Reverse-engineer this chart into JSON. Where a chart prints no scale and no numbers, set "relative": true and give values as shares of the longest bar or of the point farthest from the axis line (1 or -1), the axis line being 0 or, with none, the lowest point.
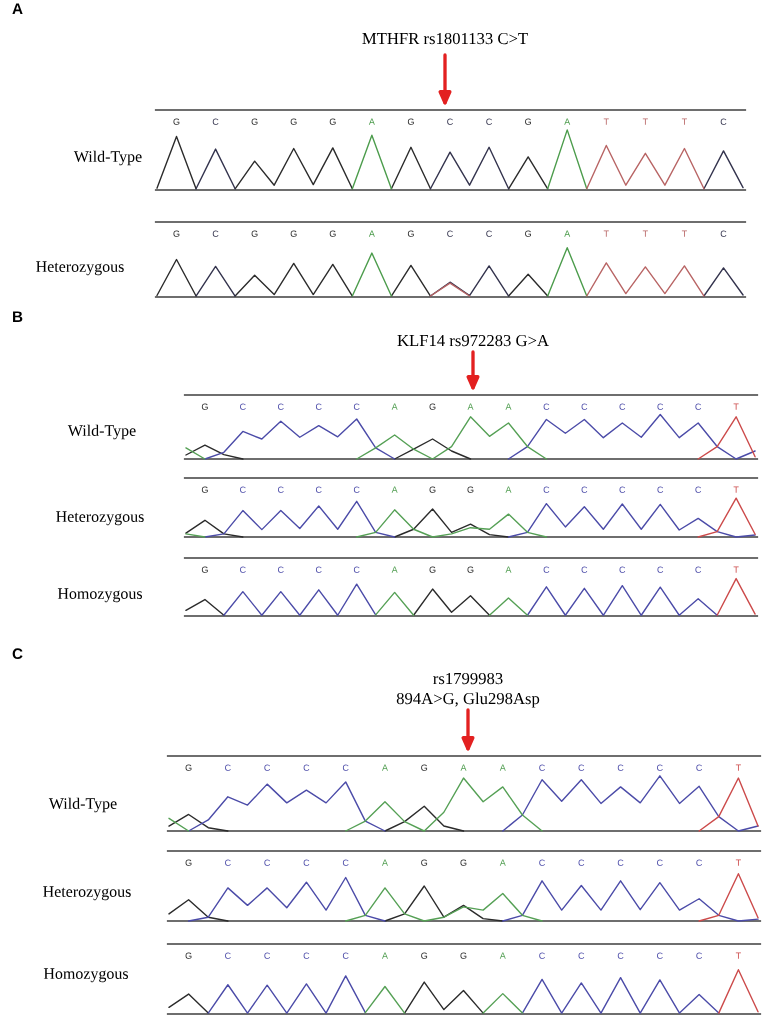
{
  "chart_data": [
    {
      "type": "line",
      "relative": true,
      "title": "MTHFR rs1801133 C>T",
      "annotations": [
        "A"
      ],
      "ylabel": "Wild-Type",
      "tick_labels": "x",
      "categories": [
        null,
        "G",
        null,
        "C",
        null,
        "G",
        null,
        "G",
        null,
        "G",
        null,
        "A",
        null,
        "G",
        null,
        "C",
        null,
        "C",
        null,
        "G",
        null,
        "A",
        null,
        "T",
        null,
        "T",
        null,
        "T",
        null,
        "C",
        null
      ],
      "series": [
        {
          "color": "#2b2b2b",
          "values": [
            0.03,
            0.89,
            0.02,
            null,
            0.02,
            0.48,
            0.08,
            0.69,
            0.09,
            0.7,
            0.02,
            null,
            0.02,
            0.71,
            0.02,
            null,
            null,
            null,
            0.02,
            0.55,
            0.02,
            null,
            null,
            null,
            null,
            null,
            null,
            null,
            null,
            null,
            null
          ]
        },
        {
          "color": "#33334d",
          "values": [
            null,
            null,
            0.02,
            0.68,
            0.02,
            null,
            null,
            null,
            null,
            null,
            null,
            null,
            null,
            null,
            0.02,
            0.63,
            0.08,
            0.71,
            0.02,
            null,
            null,
            null,
            null,
            null,
            null,
            null,
            null,
            null,
            0.02,
            0.65,
            0.04
          ]
        },
        {
          "color": "#4c9c4c",
          "values": [
            null,
            null,
            null,
            null,
            null,
            null,
            null,
            null,
            null,
            null,
            0.02,
            0.91,
            0.02,
            null,
            null,
            null,
            null,
            null,
            null,
            null,
            0.02,
            1,
            0.02,
            null,
            null,
            null,
            null,
            null,
            null,
            null,
            null
          ]
        },
        {
          "color": "#b86464",
          "values": [
            null,
            null,
            null,
            null,
            null,
            null,
            null,
            null,
            null,
            null,
            null,
            null,
            null,
            null,
            null,
            null,
            null,
            null,
            null,
            null,
            null,
            null,
            0.02,
            0.74,
            0.08,
            0.61,
            0.08,
            0.69,
            0.02,
            null,
            null
          ]
        }
      ]
    },
    {
      "type": "line",
      "relative": true,
      "ylabel": "Heterozygous",
      "tick_labels": "x",
      "categories": [
        null,
        "G",
        null,
        "C",
        null,
        "G",
        null,
        "G",
        null,
        "G",
        null,
        "A",
        null,
        "G",
        null,
        "C",
        null,
        "C",
        null,
        "G",
        null,
        "A",
        null,
        "T",
        null,
        "T",
        null,
        "T",
        null,
        "C",
        null
      ],
      "series": [
        {
          "color": "#2b2b2b",
          "values": [
            0.03,
            0.76,
            0.02,
            null,
            0.02,
            0.44,
            0.05,
            0.68,
            0.05,
            0.66,
            0.02,
            null,
            0.02,
            0.64,
            0.02,
            null,
            null,
            null,
            0.02,
            0.46,
            0.02,
            null,
            null,
            null,
            null,
            null,
            null,
            null,
            null,
            null,
            null
          ]
        },
        {
          "color": "#33334d",
          "values": [
            null,
            null,
            0.02,
            0.62,
            0.02,
            null,
            null,
            null,
            null,
            null,
            null,
            null,
            null,
            null,
            0.02,
            0.3,
            0.03,
            0.63,
            0.02,
            null,
            null,
            null,
            null,
            null,
            null,
            null,
            null,
            null,
            0.02,
            0.59,
            0.04
          ]
        },
        {
          "color": "#4c9c4c",
          "values": [
            null,
            null,
            null,
            null,
            null,
            null,
            null,
            null,
            null,
            null,
            0.02,
            0.89,
            0.02,
            null,
            null,
            null,
            null,
            null,
            null,
            null,
            0.02,
            1,
            0.02,
            null,
            null,
            null,
            null,
            null,
            null,
            null,
            null
          ]
        },
        {
          "color": "#b86464",
          "values": [
            null,
            null,
            null,
            null,
            null,
            null,
            null,
            null,
            null,
            null,
            null,
            null,
            null,
            null,
            0.02,
            0.28,
            0.02,
            null,
            null,
            null,
            null,
            null,
            0.02,
            0.69,
            0.07,
            0.61,
            0.07,
            0.63,
            0.02,
            null,
            null
          ]
        }
      ]
    },
    {
      "type": "line",
      "relative": true,
      "title": "KLF14 rs972283 G>A",
      "annotations": [
        "B"
      ],
      "ylabel": "Wild-Type",
      "tick_labels": "x",
      "categories": [
        null,
        "G",
        null,
        "C",
        null,
        "C",
        null,
        "C",
        null,
        "C",
        null,
        "A",
        null,
        "G",
        null,
        "A",
        null,
        "A",
        null,
        "C",
        null,
        "C",
        null,
        "C",
        null,
        "C",
        null,
        "C",
        null,
        "T",
        null
      ],
      "series": [
        {
          "color": "#2b2b2b",
          "values": [
            0.09,
            0.31,
            0.1,
            0,
            null,
            null,
            null,
            null,
            null,
            null,
            null,
            0,
            0.22,
            0.45,
            0.18,
            0,
            null,
            null,
            null,
            null,
            null,
            null,
            null,
            null,
            null,
            null,
            null,
            null,
            null,
            null,
            null
          ]
        },
        {
          "color": "#4b4ba8",
          "values": [
            null,
            0,
            0.15,
            0.62,
            0.45,
            0.85,
            0.49,
            0.75,
            0.5,
            0.9,
            0.25,
            0,
            null,
            null,
            null,
            null,
            null,
            0,
            0.28,
            0.89,
            0.58,
            0.89,
            0.48,
            0.81,
            0.49,
            1,
            0.48,
            0.81,
            0.28,
            0,
            0.18
          ]
        },
        {
          "color": "#55a055",
          "values": [
            0.25,
            0,
            null,
            null,
            null,
            null,
            null,
            null,
            null,
            0,
            0.25,
            0.54,
            0.22,
            0,
            0.28,
            0.95,
            0.51,
            0.81,
            0.28,
            0,
            null,
            null,
            null,
            null,
            null,
            null,
            null,
            null,
            null,
            null,
            null
          ]
        },
        {
          "color": "#cc4a4a",
          "values": [
            null,
            null,
            null,
            null,
            null,
            null,
            null,
            null,
            null,
            null,
            null,
            null,
            null,
            null,
            null,
            null,
            null,
            null,
            null,
            null,
            null,
            null,
            null,
            null,
            null,
            null,
            null,
            0,
            0.28,
            0.95,
            0.05
          ]
        }
      ]
    },
    {
      "type": "line",
      "relative": true,
      "ylabel": "Heterozygous",
      "tick_labels": "x",
      "categories": [
        null,
        "G",
        null,
        "C",
        null,
        "C",
        null,
        "C",
        null,
        "C",
        null,
        "A",
        null,
        "G",
        null,
        "G",
        null,
        "A",
        null,
        "C",
        null,
        "C",
        null,
        "C",
        null,
        "C",
        null,
        "C",
        null,
        "T",
        null
      ],
      "series": [
        {
          "color": "#2b2b2b",
          "values": [
            0.1,
            0.43,
            0.08,
            0,
            null,
            null,
            null,
            null,
            null,
            null,
            null,
            0,
            0.2,
            0.72,
            0.12,
            0.33,
            0.06,
            0,
            null,
            null,
            null,
            null,
            null,
            null,
            null,
            null,
            null,
            null,
            null,
            null,
            null
          ]
        },
        {
          "color": "#4b4ba8",
          "values": [
            null,
            0,
            0.08,
            0.68,
            0.19,
            0.68,
            0.22,
            0.8,
            0.2,
            0.92,
            0.12,
            0,
            null,
            null,
            null,
            null,
            null,
            0,
            0.12,
            0.86,
            0.26,
            0.78,
            0.2,
            0.85,
            0.2,
            0.84,
            0.18,
            0.48,
            0.14,
            0,
            0.05
          ]
        },
        {
          "color": "#55a055",
          "values": [
            0.08,
            0,
            null,
            null,
            null,
            null,
            null,
            null,
            null,
            0,
            0.12,
            0.7,
            0.2,
            0,
            0.08,
            0.24,
            0.2,
            0.59,
            0.12,
            0,
            null,
            null,
            null,
            null,
            null,
            null,
            null,
            null,
            null,
            null,
            null
          ]
        },
        {
          "color": "#cc4a4a",
          "values": [
            null,
            null,
            null,
            null,
            null,
            null,
            null,
            null,
            null,
            null,
            null,
            null,
            null,
            null,
            null,
            null,
            null,
            null,
            null,
            null,
            null,
            null,
            null,
            null,
            null,
            null,
            null,
            0,
            0.14,
            1,
            0.07
          ]
        }
      ]
    },
    {
      "type": "line",
      "relative": true,
      "ylabel": "Homozygous",
      "tick_labels": "x",
      "categories": [
        null,
        "G",
        null,
        "C",
        null,
        "C",
        null,
        "C",
        null,
        "C",
        null,
        "A",
        null,
        "G",
        null,
        "G",
        null,
        "A",
        null,
        "C",
        null,
        "C",
        null,
        "C",
        null,
        "C",
        null,
        "C",
        null,
        "T",
        null
      ],
      "series": [
        {
          "color": "#2b2b2b",
          "values": [
            0.15,
            0.44,
            0.02,
            null,
            null,
            null,
            null,
            null,
            null,
            null,
            null,
            null,
            0.02,
            0.72,
            0.1,
            0.54,
            0.02,
            null,
            null,
            null,
            null,
            null,
            null,
            null,
            null,
            null,
            null,
            null,
            null,
            null,
            null
          ]
        },
        {
          "color": "#4b4ba8",
          "values": [
            null,
            null,
            0.02,
            0.65,
            0.02,
            0.65,
            0.02,
            0.7,
            0.02,
            0.85,
            0.03,
            null,
            null,
            null,
            null,
            null,
            null,
            null,
            0.02,
            0.78,
            0.02,
            0.74,
            0.02,
            0.81,
            0.02,
            0.77,
            0.02,
            0.46,
            0.02,
            null,
            null
          ]
        },
        {
          "color": "#55a055",
          "values": [
            null,
            null,
            null,
            null,
            null,
            null,
            null,
            null,
            null,
            null,
            0.03,
            0.63,
            0.02,
            null,
            null,
            null,
            0.02,
            0.48,
            0.02,
            null,
            null,
            null,
            null,
            null,
            null,
            null,
            null,
            null,
            null,
            null,
            null
          ]
        },
        {
          "color": "#cc4a4a",
          "values": [
            null,
            null,
            null,
            null,
            null,
            null,
            null,
            null,
            null,
            null,
            null,
            null,
            null,
            null,
            null,
            null,
            null,
            null,
            null,
            null,
            null,
            null,
            null,
            null,
            null,
            null,
            null,
            null,
            0.02,
            1,
            0.05
          ]
        }
      ]
    },
    {
      "type": "line",
      "relative": true,
      "title": "rs1799983",
      "subtitle": "894A>G, Glu298Asp",
      "annotations": [
        "C"
      ],
      "ylabel": "Wild-Type",
      "tick_labels": "x",
      "categories": [
        null,
        "G",
        null,
        "C",
        null,
        "C",
        null,
        "C",
        null,
        "C",
        null,
        "A",
        null,
        "G",
        null,
        "A",
        null,
        "A",
        null,
        "C",
        null,
        "C",
        null,
        "C",
        null,
        "C",
        null,
        "C",
        null,
        "T",
        null
      ],
      "series": [
        {
          "color": "#2b2b2b",
          "values": [
            0.09,
            0.3,
            0.06,
            0,
            null,
            null,
            null,
            null,
            null,
            null,
            null,
            0,
            0.17,
            0.45,
            0.09,
            0,
            null,
            null,
            null,
            null,
            null,
            null,
            null,
            null,
            null,
            null,
            null,
            null,
            null,
            null,
            null
          ]
        },
        {
          "color": "#4b4ba8",
          "values": [
            null,
            0,
            0.2,
            0.62,
            0.47,
            0.85,
            0.51,
            0.74,
            0.51,
            0.89,
            0.18,
            0,
            null,
            null,
            null,
            null,
            null,
            0,
            0.29,
            0.93,
            0.54,
            0.93,
            0.5,
            0.8,
            0.51,
            1,
            0.5,
            0.81,
            0.26,
            0,
            0.09
          ]
        },
        {
          "color": "#55a055",
          "values": [
            0.23,
            0,
            null,
            null,
            null,
            null,
            null,
            null,
            null,
            0,
            0.18,
            0.53,
            0.17,
            0,
            0.34,
            0.96,
            0.53,
            0.8,
            0.29,
            0,
            null,
            null,
            null,
            null,
            null,
            null,
            null,
            null,
            null,
            null,
            null
          ]
        },
        {
          "color": "#cc4a4a",
          "values": [
            null,
            null,
            null,
            null,
            null,
            null,
            null,
            null,
            null,
            null,
            null,
            null,
            null,
            null,
            null,
            null,
            null,
            null,
            null,
            null,
            null,
            null,
            null,
            null,
            null,
            null,
            null,
            0,
            0.26,
            0.96,
            0.09
          ]
        }
      ]
    },
    {
      "type": "line",
      "relative": true,
      "ylabel": "Heterozygous",
      "tick_labels": "x",
      "categories": [
        null,
        "G",
        null,
        "C",
        null,
        "C",
        null,
        "C",
        null,
        "C",
        null,
        "A",
        null,
        "G",
        null,
        "G",
        null,
        "A",
        null,
        "C",
        null,
        "C",
        null,
        "C",
        null,
        "C",
        null,
        "C",
        null,
        "T",
        null
      ],
      "series": [
        {
          "color": "#2b2b2b",
          "values": [
            0.15,
            0.45,
            0.08,
            0,
            null,
            null,
            null,
            null,
            null,
            null,
            null,
            0,
            0.15,
            0.74,
            0.08,
            0.33,
            0.05,
            0,
            null,
            null,
            null,
            null,
            null,
            null,
            null,
            null,
            null,
            null,
            null,
            null,
            null
          ]
        },
        {
          "color": "#4b4ba8",
          "values": [
            null,
            0,
            0.08,
            0.7,
            0.33,
            0.7,
            0.28,
            0.82,
            0.23,
            0.92,
            0.12,
            0,
            null,
            null,
            null,
            null,
            null,
            0,
            0.12,
            0.85,
            0.23,
            0.75,
            0.23,
            0.85,
            0.24,
            0.81,
            0.23,
            0.47,
            0.12,
            0,
            0.04
          ]
        },
        {
          "color": "#55a055",
          "values": [
            null,
            null,
            null,
            null,
            null,
            null,
            null,
            null,
            null,
            0,
            0.12,
            0.7,
            0.15,
            0,
            0.08,
            0.3,
            0.23,
            0.58,
            0.12,
            0,
            null,
            null,
            null,
            null,
            null,
            null,
            null,
            null,
            null,
            null,
            null
          ]
        },
        {
          "color": "#cc4a4a",
          "values": [
            null,
            null,
            null,
            null,
            null,
            null,
            null,
            null,
            null,
            null,
            null,
            null,
            null,
            null,
            null,
            null,
            null,
            null,
            null,
            null,
            null,
            null,
            null,
            null,
            null,
            null,
            null,
            0,
            0.12,
            1,
            0.07
          ]
        }
      ]
    },
    {
      "type": "line",
      "relative": true,
      "ylabel": "Homozygous",
      "tick_labels": "x",
      "categories": [
        null,
        "G",
        null,
        "C",
        null,
        "C",
        null,
        "C",
        null,
        "C",
        null,
        "A",
        null,
        "G",
        null,
        "G",
        null,
        "A",
        null,
        "C",
        null,
        "C",
        null,
        "C",
        null,
        "C",
        null,
        "C",
        null,
        "T",
        null
      ],
      "series": [
        {
          "color": "#2b2b2b",
          "values": [
            0.15,
            0.45,
            0.02,
            null,
            null,
            null,
            null,
            null,
            null,
            null,
            null,
            null,
            0.02,
            0.72,
            0.1,
            0.53,
            0.02,
            null,
            null,
            null,
            null,
            null,
            null,
            null,
            null,
            null,
            null,
            null,
            null,
            null,
            null
          ]
        },
        {
          "color": "#4b4ba8",
          "values": [
            null,
            null,
            0.02,
            0.66,
            0.02,
            0.65,
            0.02,
            0.68,
            0.02,
            0.86,
            0.03,
            null,
            null,
            null,
            null,
            null,
            null,
            null,
            0.02,
            0.78,
            0.02,
            0.7,
            0.02,
            0.82,
            0.02,
            0.77,
            0.02,
            0.44,
            0.02,
            null,
            null
          ]
        },
        {
          "color": "#55a055",
          "values": [
            null,
            null,
            null,
            null,
            null,
            null,
            null,
            null,
            null,
            null,
            0.03,
            0.62,
            0.02,
            null,
            null,
            null,
            0.02,
            0.46,
            0.02,
            null,
            null,
            null,
            null,
            null,
            null,
            null,
            null,
            null,
            null,
            null,
            null
          ]
        },
        {
          "color": "#cc4a4a",
          "values": [
            null,
            null,
            null,
            null,
            null,
            null,
            null,
            null,
            null,
            null,
            null,
            null,
            null,
            null,
            null,
            null,
            null,
            null,
            null,
            null,
            null,
            null,
            null,
            null,
            null,
            null,
            null,
            null,
            0.02,
            1,
            0.05
          ]
        }
      ]
    }
  ]
}
